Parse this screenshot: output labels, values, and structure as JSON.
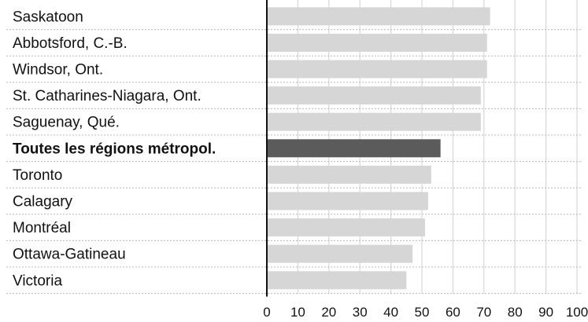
{
  "chart_data": {
    "type": "bar",
    "orientation": "horizontal",
    "categories": [
      "Saskatoon",
      "Abbotsford, C.-B.",
      "Windsor, Ont.",
      "St. Catharines-Niagara, Ont.",
      "Saguenay, Qué.",
      "Toutes les régions métropol.",
      "Toronto",
      "Calagary",
      "Montréal",
      "Ottawa-Gatineau",
      "Victoria"
    ],
    "values": [
      72,
      71,
      71,
      69,
      69,
      56,
      53,
      52,
      51,
      47,
      45
    ],
    "highlight_index": 5,
    "xticks": [
      "0",
      "10",
      "20",
      "30",
      "40",
      "50",
      "60",
      "70",
      "80",
      "90",
      "100"
    ],
    "xlim": [
      0,
      100
    ],
    "grid": true,
    "colors": {
      "bar": "#d6d6d6",
      "highlight": "#5b5b5b",
      "grid": "#cfcfcf",
      "row_separator": "#b8b8b8",
      "axis": "#111111",
      "text": "#111111"
    }
  }
}
